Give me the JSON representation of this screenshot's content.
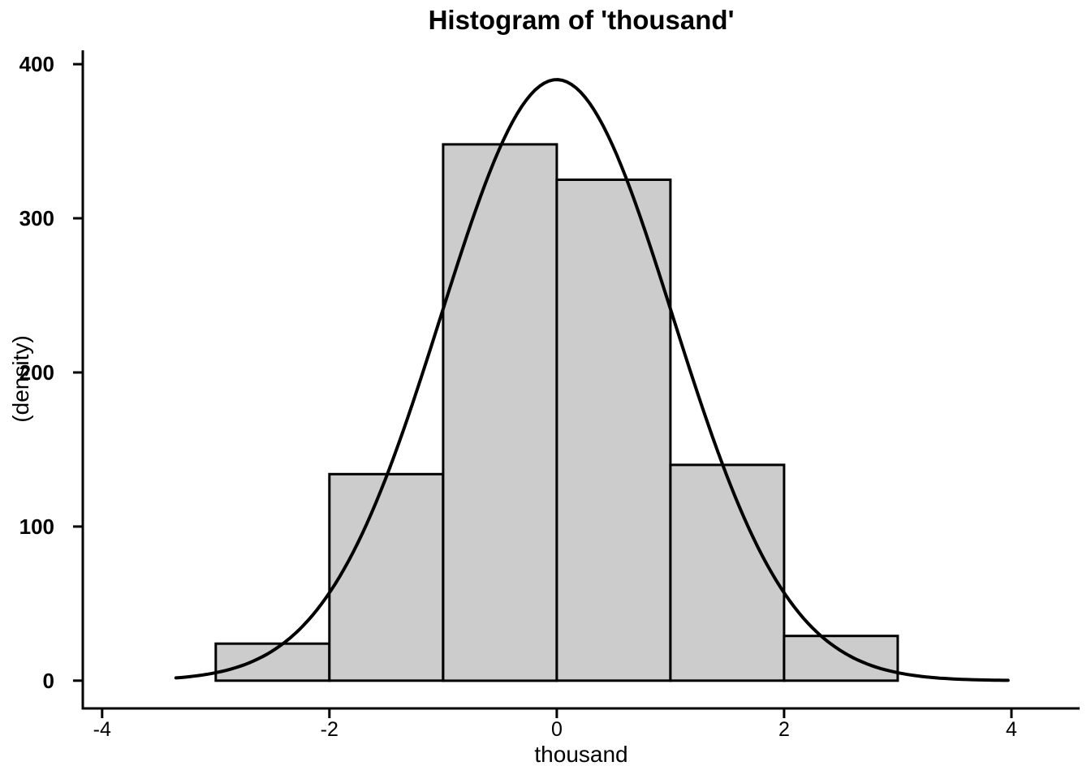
{
  "chart_data": {
    "type": "bar",
    "subtype": "histogram",
    "title": "Histogram of 'thousand'",
    "xlabel": "thousand",
    "ylabel": "(density)",
    "bin_edges": [
      -3,
      -2,
      -1,
      0,
      1,
      2,
      3
    ],
    "counts": [
      24,
      134,
      348,
      325,
      140,
      29
    ],
    "x_ticks": [
      -4,
      -2,
      0,
      2,
      4
    ],
    "y_ticks": [
      0,
      100,
      200,
      300,
      400
    ],
    "xlim": [
      -4.17,
      4.6
    ],
    "ylim": [
      -18,
      409
    ],
    "grid": false,
    "legend": null,
    "curve": {
      "shape": "gaussian",
      "mean": 0,
      "sd": 1.02,
      "peak": 390,
      "x_start": -3.35,
      "x_end": 4.0
    },
    "colors": {
      "bar_fill": "#cccccc",
      "bar_stroke": "#000000",
      "curve": "#000000",
      "axis": "#000000",
      "text": "#000000",
      "background": "#ffffff"
    }
  }
}
